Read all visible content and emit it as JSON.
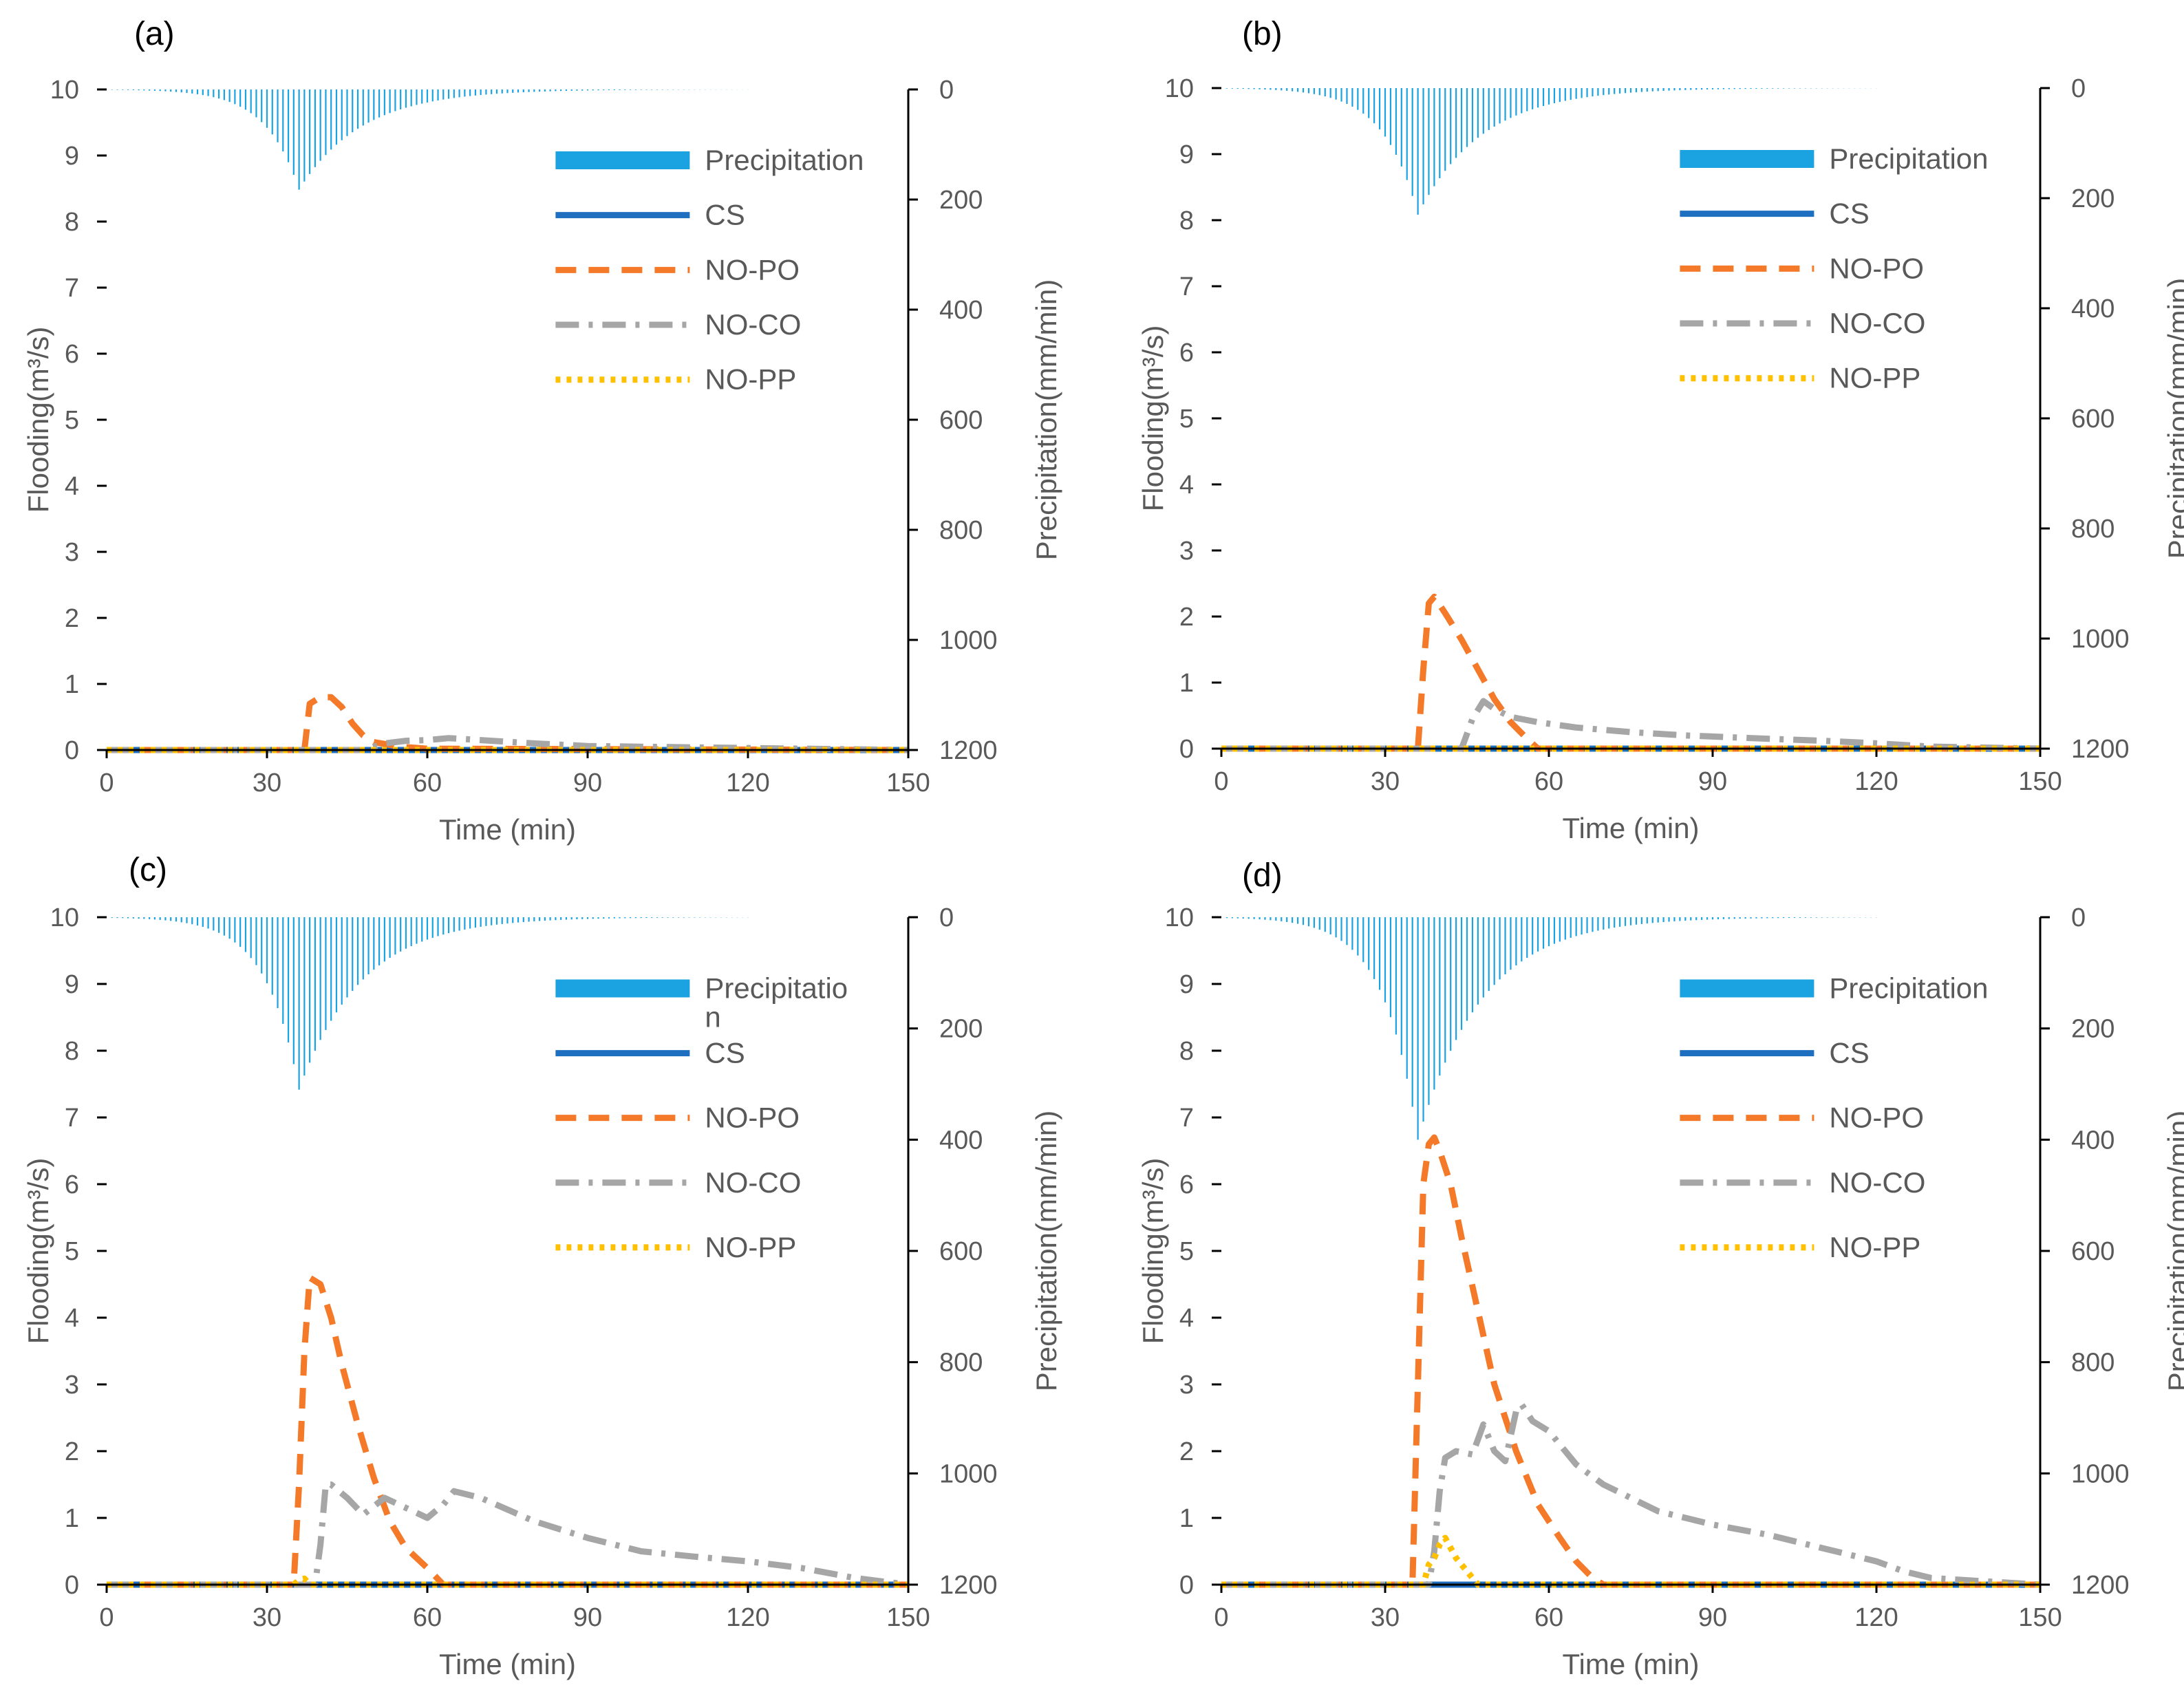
{
  "figure_colors": {
    "precipitation": "#1AA3E0",
    "cs": "#1F6FC0",
    "no_po": "#F47A2A",
    "no_co": "#A6A6A6",
    "no_pp": "#FFC000",
    "axis": "#000000",
    "text": "#595959"
  },
  "chart_data": [
    {
      "type": "line",
      "panel_label": "(a)",
      "xlabel": "Time (min)",
      "ylabel": "Flooding(m³/s)",
      "y2label": "Precipitation(mm/min)",
      "xlim": [
        0,
        150
      ],
      "ylim": [
        0,
        10
      ],
      "y2lim": [
        0,
        1200
      ],
      "y2_inverted": true,
      "xticks": [
        "0",
        "30",
        "60",
        "90",
        "120",
        "150"
      ],
      "yticks": [
        "0",
        "1",
        "2",
        "3",
        "4",
        "5",
        "6",
        "7",
        "8",
        "9",
        "10"
      ],
      "y2ticks": [
        "0",
        "200",
        "400",
        "600",
        "800",
        "1000",
        "1200"
      ],
      "legend": [
        "Precipitation",
        "CS",
        "NO-PO",
        "NO-CO",
        "NO-PP"
      ],
      "precip_peak": 182,
      "series": [
        {
          "name": "CS",
          "x": [
            0,
            150
          ],
          "y": [
            0,
            0
          ]
        },
        {
          "name": "NO-PO",
          "x": [
            0,
            37,
            38,
            40,
            42,
            44,
            46,
            48,
            50,
            55,
            60,
            150
          ],
          "y": [
            0,
            0,
            0.7,
            0.8,
            0.8,
            0.65,
            0.4,
            0.22,
            0.12,
            0.05,
            0.02,
            0
          ]
        },
        {
          "name": "NO-CO",
          "x": [
            0,
            48,
            52,
            56,
            60,
            64,
            70,
            80,
            90,
            100,
            110,
            120,
            150
          ],
          "y": [
            0,
            0,
            0.1,
            0.14,
            0.15,
            0.18,
            0.15,
            0.1,
            0.06,
            0.05,
            0.04,
            0.03,
            0
          ]
        },
        {
          "name": "NO-PP",
          "x": [
            0,
            150
          ],
          "y": [
            0,
            0
          ]
        }
      ]
    },
    {
      "type": "line",
      "panel_label": "(b)",
      "xlabel": "Time (min)",
      "ylabel": "Flooding(m³/s)",
      "y2label": "Precipitation(mm/min)",
      "xlim": [
        0,
        150
      ],
      "ylim": [
        0,
        10
      ],
      "y2lim": [
        0,
        1200
      ],
      "y2_inverted": true,
      "xticks": [
        "0",
        "30",
        "60",
        "90",
        "120",
        "150"
      ],
      "yticks": [
        "0",
        "1",
        "2",
        "3",
        "4",
        "5",
        "6",
        "7",
        "8",
        "9",
        "10"
      ],
      "y2ticks": [
        "0",
        "200",
        "400",
        "600",
        "800",
        "1000",
        "1200"
      ],
      "legend": [
        "Precipitation",
        "CS",
        "NO-PO",
        "NO-CO",
        "NO-PP"
      ],
      "precip_peak": 230,
      "series": [
        {
          "name": "CS",
          "x": [
            0,
            150
          ],
          "y": [
            0,
            0
          ]
        },
        {
          "name": "NO-PO",
          "x": [
            0,
            36,
            37,
            38,
            39,
            41,
            44,
            47,
            50,
            53,
            56,
            58,
            150
          ],
          "y": [
            0,
            0,
            1.2,
            2.2,
            2.3,
            2.05,
            1.65,
            1.2,
            0.75,
            0.4,
            0.15,
            0,
            0
          ]
        },
        {
          "name": "NO-CO",
          "x": [
            0,
            44,
            46,
            48,
            50,
            53,
            58,
            65,
            75,
            85,
            100,
            110,
            120,
            130,
            150
          ],
          "y": [
            0,
            0,
            0.45,
            0.72,
            0.6,
            0.48,
            0.4,
            0.32,
            0.25,
            0.2,
            0.15,
            0.12,
            0.08,
            0.03,
            0
          ]
        },
        {
          "name": "NO-PP",
          "x": [
            0,
            150
          ],
          "y": [
            0,
            0
          ]
        }
      ]
    },
    {
      "type": "line",
      "panel_label": "(c)",
      "xlabel": "Time (min)",
      "ylabel": "Flooding(m³/s)",
      "y2label": "Precipitation(mm/min)",
      "xlim": [
        0,
        150
      ],
      "ylim": [
        0,
        10
      ],
      "y2lim": [
        0,
        1200
      ],
      "y2_inverted": true,
      "xticks": [
        "0",
        "30",
        "60",
        "90",
        "120",
        "150"
      ],
      "yticks": [
        "0",
        "1",
        "2",
        "3",
        "4",
        "5",
        "6",
        "7",
        "8",
        "9",
        "10"
      ],
      "y2ticks": [
        "0",
        "200",
        "400",
        "600",
        "800",
        "1000",
        "1200"
      ],
      "legend": [
        "Precipitatio\nn",
        "CS",
        "NO-PO",
        "NO-CO",
        "NO-PP"
      ],
      "precip_peak": 310,
      "series": [
        {
          "name": "CS",
          "x": [
            0,
            150
          ],
          "y": [
            0,
            0
          ]
        },
        {
          "name": "NO-PO",
          "x": [
            0,
            35,
            36,
            37,
            38,
            40,
            42,
            44,
            47,
            50,
            53,
            56,
            60,
            63,
            150
          ],
          "y": [
            0,
            0,
            1.5,
            3.5,
            4.6,
            4.5,
            4.0,
            3.3,
            2.4,
            1.6,
            0.95,
            0.55,
            0.25,
            0,
            0
          ]
        },
        {
          "name": "NO-CO",
          "x": [
            0,
            39,
            40,
            41,
            42,
            45,
            48,
            52,
            56,
            60,
            63,
            65,
            70,
            80,
            90,
            100,
            110,
            120,
            130,
            140,
            150
          ],
          "y": [
            0,
            0,
            0.6,
            1.5,
            1.5,
            1.3,
            1.05,
            1.3,
            1.15,
            1.0,
            1.2,
            1.4,
            1.3,
            0.95,
            0.7,
            0.5,
            0.42,
            0.35,
            0.25,
            0.1,
            0
          ]
        },
        {
          "name": "NO-PP",
          "x": [
            0,
            35,
            36,
            37,
            38,
            150
          ],
          "y": [
            0,
            0,
            0.07,
            0.09,
            0,
            0
          ]
        }
      ]
    },
    {
      "type": "line",
      "panel_label": "(d)",
      "xlabel": "Time (min)",
      "ylabel": "Flooding(m³/s)",
      "y2label": "Precipitation(mm/min)",
      "xlim": [
        0,
        150
      ],
      "ylim": [
        0,
        10
      ],
      "y2lim": [
        0,
        1200
      ],
      "y2_inverted": true,
      "xticks": [
        "0",
        "30",
        "60",
        "90",
        "120",
        "150"
      ],
      "yticks": [
        "0",
        "1",
        "2",
        "3",
        "4",
        "5",
        "6",
        "7",
        "8",
        "9",
        "10"
      ],
      "y2ticks": [
        "0",
        "200",
        "400",
        "600",
        "800",
        "1000",
        "1200"
      ],
      "legend": [
        "Precipitation",
        "CS",
        "NO-PO",
        "NO-CO",
        "NO-PP"
      ],
      "precip_peak": 400,
      "series": [
        {
          "name": "CS",
          "x": [
            0,
            150
          ],
          "y": [
            0,
            0
          ]
        },
        {
          "name": "NO-PO",
          "x": [
            0,
            35,
            36,
            37,
            38,
            39,
            40,
            42,
            44,
            47,
            50,
            54,
            58,
            62,
            65,
            68,
            70,
            150
          ],
          "y": [
            0,
            0,
            3.0,
            6.0,
            6.6,
            6.7,
            6.5,
            6.0,
            5.2,
            4.1,
            3.0,
            2.0,
            1.2,
            0.7,
            0.35,
            0.1,
            0,
            0
          ]
        },
        {
          "name": "NO-CO",
          "x": [
            0,
            38,
            39,
            40,
            41,
            43,
            46,
            48,
            50,
            52,
            54,
            55,
            57,
            60,
            65,
            70,
            80,
            90,
            100,
            110,
            120,
            125,
            130,
            140,
            150
          ],
          "y": [
            0,
            0,
            0.5,
            1.4,
            1.9,
            2.0,
            1.95,
            2.4,
            2.0,
            1.85,
            2.6,
            2.7,
            2.45,
            2.3,
            1.8,
            1.5,
            1.1,
            0.9,
            0.75,
            0.55,
            0.35,
            0.2,
            0.1,
            0.05,
            0
          ]
        },
        {
          "name": "NO-PP",
          "x": [
            0,
            37,
            38,
            39,
            40,
            41,
            42,
            43,
            45,
            47,
            150
          ],
          "y": [
            0,
            0,
            0.3,
            0.4,
            0.6,
            0.7,
            0.55,
            0.4,
            0.2,
            0,
            0
          ]
        }
      ]
    }
  ]
}
